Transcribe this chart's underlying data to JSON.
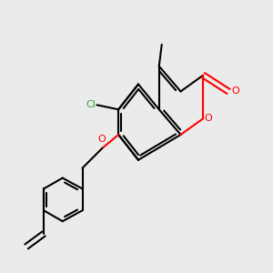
{
  "bg_color": "#ebebeb",
  "bond_color": "#000000",
  "o_color": "#ff0000",
  "cl_color": "#33aa33",
  "lw": 1.5,
  "lw_double": 1.5,
  "figsize": [
    3.0,
    3.0
  ],
  "dpi": 100,
  "xlim": [
    0,
    10
  ],
  "ylim": [
    0,
    10
  ]
}
